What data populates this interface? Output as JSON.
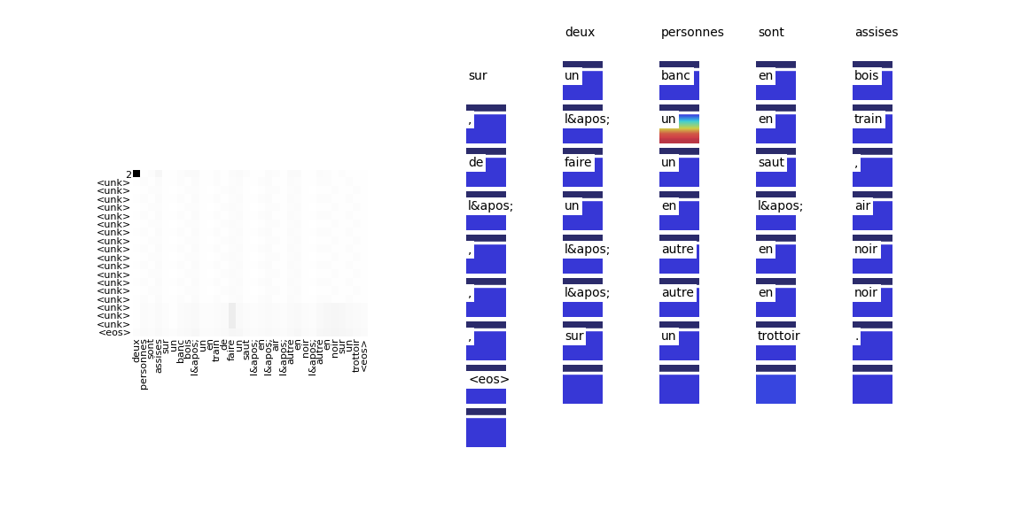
{
  "chart_data": {
    "type": "heatmap",
    "x_labels": [
      "deux",
      "personnes",
      "sont",
      "assises",
      "sur",
      "un",
      "banc",
      "bois",
      "l&apos;",
      "un",
      "en",
      "train",
      "de",
      "faire",
      "un",
      "saut",
      "l&apos;",
      "en",
      "l&apos;",
      "air",
      "l&apos;",
      "autre",
      "en",
      "noir",
      "l&apos;",
      "autre",
      "en",
      "noir",
      "sur",
      "un",
      "trottoir",
      "<eos>"
    ],
    "y_labels": [
      "2",
      "<unk>",
      "<unk>",
      "<unk>",
      "<unk>",
      "<unk>",
      "<unk>",
      "<unk>",
      "<unk>",
      "<unk>",
      "<unk>",
      "<unk>",
      "<unk>",
      "<unk>",
      "<unk>",
      "<unk>",
      "<unk>",
      "<unk>",
      "<unk>",
      "<eos>"
    ],
    "cells": [
      [
        1,
        0.02,
        0.03,
        0.08,
        0.02,
        0.02,
        0.03,
        0.05,
        0.05,
        0.02,
        0.02,
        0.03,
        0.02,
        0.04,
        0.05,
        0.03,
        0.02,
        0.02,
        0.04,
        0.03,
        0.02,
        0.05,
        0.05,
        0.02,
        0.02,
        0.04,
        0.03,
        0.02,
        0.03,
        0.02,
        0.02,
        0.02
      ],
      [
        0.02,
        0.03,
        0.02,
        0.04,
        0.02,
        0.02,
        0.03,
        0.02,
        0.04,
        0.02,
        0.02,
        0.03,
        0.02,
        0.03,
        0.04,
        0.02,
        0.02,
        0.03,
        0.04,
        0.02,
        0.02,
        0.04,
        0.03,
        0.02,
        0.02,
        0.03,
        0.03,
        0.02,
        0.02,
        0.03,
        0.02,
        0.02
      ],
      [
        0.01,
        0.02,
        0.03,
        0.03,
        0.02,
        0.01,
        0.02,
        0.03,
        0.03,
        0.02,
        0.01,
        0.02,
        0.03,
        0.04,
        0.03,
        0.02,
        0.01,
        0.02,
        0.03,
        0.03,
        0.02,
        0.03,
        0.04,
        0.02,
        0.01,
        0.02,
        0.02,
        0.03,
        0.02,
        0.02,
        0.03,
        0.02
      ],
      [
        0.02,
        0.03,
        0.02,
        0.04,
        0.02,
        0.02,
        0.03,
        0.02,
        0.04,
        0.02,
        0.02,
        0.03,
        0.02,
        0.03,
        0.04,
        0.02,
        0.02,
        0.03,
        0.04,
        0.02,
        0.02,
        0.04,
        0.03,
        0.02,
        0.02,
        0.03,
        0.03,
        0.02,
        0.02,
        0.03,
        0.02,
        0.02
      ],
      [
        0.01,
        0.02,
        0.03,
        0.03,
        0.02,
        0.01,
        0.02,
        0.03,
        0.03,
        0.02,
        0.01,
        0.02,
        0.03,
        0.04,
        0.03,
        0.02,
        0.01,
        0.02,
        0.03,
        0.03,
        0.02,
        0.03,
        0.04,
        0.02,
        0.01,
        0.02,
        0.02,
        0.03,
        0.02,
        0.02,
        0.03,
        0.02
      ],
      [
        0.02,
        0.03,
        0.02,
        0.04,
        0.02,
        0.02,
        0.03,
        0.02,
        0.04,
        0.02,
        0.02,
        0.03,
        0.02,
        0.03,
        0.04,
        0.02,
        0.02,
        0.03,
        0.04,
        0.02,
        0.02,
        0.04,
        0.03,
        0.02,
        0.02,
        0.03,
        0.03,
        0.02,
        0.02,
        0.03,
        0.02,
        0.02
      ],
      [
        0.01,
        0.02,
        0.03,
        0.03,
        0.02,
        0.01,
        0.02,
        0.03,
        0.03,
        0.02,
        0.01,
        0.02,
        0.03,
        0.04,
        0.03,
        0.02,
        0.01,
        0.02,
        0.03,
        0.03,
        0.02,
        0.03,
        0.04,
        0.02,
        0.01,
        0.02,
        0.02,
        0.03,
        0.02,
        0.02,
        0.03,
        0.02
      ],
      [
        0.02,
        0.03,
        0.02,
        0.04,
        0.02,
        0.02,
        0.03,
        0.02,
        0.04,
        0.02,
        0.02,
        0.03,
        0.02,
        0.03,
        0.04,
        0.02,
        0.02,
        0.03,
        0.04,
        0.02,
        0.02,
        0.04,
        0.03,
        0.02,
        0.02,
        0.03,
        0.03,
        0.02,
        0.02,
        0.03,
        0.02,
        0.02
      ],
      [
        0.01,
        0.02,
        0.03,
        0.03,
        0.02,
        0.01,
        0.02,
        0.03,
        0.03,
        0.02,
        0.01,
        0.02,
        0.03,
        0.04,
        0.03,
        0.02,
        0.01,
        0.02,
        0.03,
        0.03,
        0.02,
        0.03,
        0.04,
        0.02,
        0.01,
        0.02,
        0.02,
        0.03,
        0.02,
        0.02,
        0.03,
        0.02
      ],
      [
        0.02,
        0.03,
        0.02,
        0.04,
        0.02,
        0.02,
        0.03,
        0.02,
        0.04,
        0.02,
        0.02,
        0.03,
        0.02,
        0.03,
        0.04,
        0.02,
        0.02,
        0.03,
        0.04,
        0.02,
        0.02,
        0.04,
        0.03,
        0.02,
        0.02,
        0.03,
        0.03,
        0.02,
        0.02,
        0.03,
        0.02,
        0.02
      ],
      [
        0.01,
        0.02,
        0.03,
        0.03,
        0.02,
        0.01,
        0.02,
        0.03,
        0.03,
        0.02,
        0.01,
        0.02,
        0.03,
        0.04,
        0.03,
        0.02,
        0.01,
        0.02,
        0.03,
        0.03,
        0.02,
        0.03,
        0.04,
        0.02,
        0.01,
        0.02,
        0.02,
        0.03,
        0.02,
        0.02,
        0.03,
        0.02
      ],
      [
        0.02,
        0.03,
        0.02,
        0.04,
        0.02,
        0.02,
        0.03,
        0.02,
        0.04,
        0.02,
        0.02,
        0.03,
        0.02,
        0.03,
        0.04,
        0.02,
        0.02,
        0.03,
        0.04,
        0.02,
        0.02,
        0.04,
        0.03,
        0.02,
        0.02,
        0.03,
        0.03,
        0.02,
        0.02,
        0.03,
        0.02,
        0.02
      ],
      [
        0.01,
        0.02,
        0.03,
        0.03,
        0.02,
        0.01,
        0.02,
        0.03,
        0.03,
        0.02,
        0.01,
        0.02,
        0.03,
        0.04,
        0.03,
        0.02,
        0.01,
        0.02,
        0.03,
        0.03,
        0.02,
        0.03,
        0.04,
        0.02,
        0.01,
        0.02,
        0.02,
        0.03,
        0.02,
        0.02,
        0.03,
        0.02
      ],
      [
        0.02,
        0.03,
        0.02,
        0.04,
        0.02,
        0.02,
        0.03,
        0.02,
        0.04,
        0.02,
        0.02,
        0.03,
        0.02,
        0.03,
        0.04,
        0.02,
        0.02,
        0.03,
        0.04,
        0.02,
        0.02,
        0.04,
        0.03,
        0.02,
        0.02,
        0.03,
        0.03,
        0.02,
        0.02,
        0.03,
        0.02,
        0.02
      ],
      [
        0.01,
        0.02,
        0.03,
        0.03,
        0.02,
        0.01,
        0.02,
        0.03,
        0.03,
        0.02,
        0.01,
        0.02,
        0.03,
        0.04,
        0.03,
        0.02,
        0.01,
        0.02,
        0.03,
        0.03,
        0.02,
        0.03,
        0.04,
        0.02,
        0.01,
        0.02,
        0.02,
        0.03,
        0.02,
        0.02,
        0.03,
        0.02
      ],
      [
        0.02,
        0.03,
        0.02,
        0.04,
        0.02,
        0.02,
        0.03,
        0.02,
        0.04,
        0.02,
        0.02,
        0.03,
        0.02,
        0.03,
        0.04,
        0.02,
        0.02,
        0.03,
        0.04,
        0.02,
        0.02,
        0.04,
        0.03,
        0.02,
        0.02,
        0.03,
        0.03,
        0.02,
        0.02,
        0.03,
        0.02,
        0.02
      ],
      [
        0.02,
        0.04,
        0.03,
        0.05,
        0.03,
        0.02,
        0.04,
        0.05,
        0.06,
        0.03,
        0.03,
        0.04,
        0.05,
        0.15,
        0.06,
        0.04,
        0.03,
        0.04,
        0.05,
        0.04,
        0.03,
        0.05,
        0.06,
        0.04,
        0.03,
        0.06,
        0.07,
        0.08,
        0.07,
        0.06,
        0.05,
        0.04
      ],
      [
        0.02,
        0.04,
        0.03,
        0.05,
        0.03,
        0.02,
        0.04,
        0.05,
        0.06,
        0.03,
        0.03,
        0.04,
        0.05,
        0.15,
        0.06,
        0.04,
        0.03,
        0.04,
        0.05,
        0.04,
        0.03,
        0.05,
        0.06,
        0.04,
        0.03,
        0.06,
        0.07,
        0.08,
        0.07,
        0.06,
        0.05,
        0.04
      ],
      [
        0.02,
        0.04,
        0.03,
        0.05,
        0.03,
        0.02,
        0.04,
        0.05,
        0.06,
        0.03,
        0.03,
        0.04,
        0.05,
        0.15,
        0.06,
        0.04,
        0.03,
        0.04,
        0.05,
        0.04,
        0.03,
        0.05,
        0.06,
        0.04,
        0.03,
        0.06,
        0.07,
        0.08,
        0.07,
        0.06,
        0.05,
        0.04
      ],
      [
        0.03,
        0.05,
        0.04,
        0.06,
        0.04,
        0.03,
        0.05,
        0.06,
        0.07,
        0.04,
        0.04,
        0.05,
        0.06,
        0.08,
        0.07,
        0.05,
        0.04,
        0.05,
        0.06,
        0.05,
        0.04,
        0.06,
        0.07,
        0.05,
        0.04,
        0.07,
        0.08,
        0.09,
        0.08,
        0.07,
        0.06,
        0.05
      ]
    ]
  },
  "attention_tiles": {
    "words": [
      "deux",
      "personnes",
      "sont",
      "assises",
      "sur",
      "un",
      "banc",
      "en",
      "bois",
      ",",
      "l&apos;",
      "un",
      "en",
      "train",
      "de",
      "faire",
      "un",
      "saut",
      ",",
      "l&apos;",
      "un",
      "en",
      "l&apos;",
      "air",
      ",",
      "l&apos;",
      "autre",
      "en",
      "noir",
      ",",
      "l&apos;",
      "autre",
      "en",
      "noir",
      ",",
      "sur",
      "un",
      "trottoir",
      ".",
      "<eos>"
    ],
    "attention": [
      0.1,
      0.1,
      0.1,
      0.1,
      0.1,
      0.1,
      [
        [
          0.1
        ],
        [
          0.12
        ],
        [
          0.35
        ],
        [
          0.6
        ],
        [
          0.85
        ],
        [
          0.92
        ]
      ],
      0.1,
      0.1,
      0.1,
      0.1,
      0.1,
      0.1,
      0.1,
      0.1,
      0.1,
      0.1,
      0.1,
      0.1,
      0.1,
      0.1,
      0.1,
      0.1,
      0.1,
      0.1,
      0.1,
      0.1,
      0.1,
      0.1,
      0.1,
      0.1,
      0.1,
      0.1,
      0.1,
      0.1,
      0.1,
      0.1,
      0.15,
      0.1,
      0.1
    ]
  }
}
